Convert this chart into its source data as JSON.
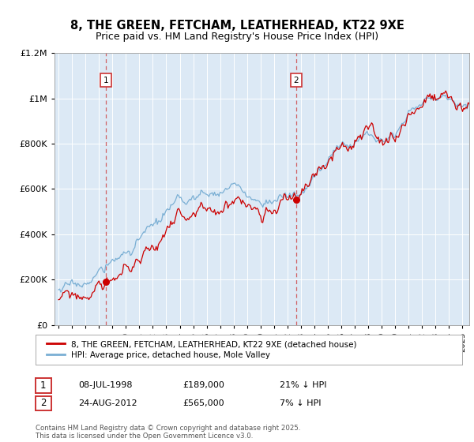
{
  "title_line1": "8, THE GREEN, FETCHAM, LEATHERHEAD, KT22 9XE",
  "title_line2": "Price paid vs. HM Land Registry's House Price Index (HPI)",
  "background_color": "#dce9f5",
  "plot_bg_color": "#dce9f5",
  "red_color": "#cc0000",
  "blue_color": "#7aafd4",
  "annotation1_date": "08-JUL-1998",
  "annotation1_price": "£189,000",
  "annotation1_hpi": "21% ↓ HPI",
  "annotation2_date": "24-AUG-2012",
  "annotation2_price": "£565,000",
  "annotation2_hpi": "7% ↓ HPI",
  "legend_label1": "8, THE GREEN, FETCHAM, LEATHERHEAD, KT22 9XE (detached house)",
  "legend_label2": "HPI: Average price, detached house, Mole Valley",
  "footer": "Contains HM Land Registry data © Crown copyright and database right 2025.\nThis data is licensed under the Open Government Licence v3.0.",
  "purchase1_year": 1998.54,
  "purchase1_value": 189000,
  "purchase2_year": 2012.65,
  "purchase2_value": 565000,
  "ylim_max": 1200000,
  "xlim_min": 1994.7,
  "xlim_max": 2025.5,
  "hpi_seed": 17,
  "red_seed": 99
}
